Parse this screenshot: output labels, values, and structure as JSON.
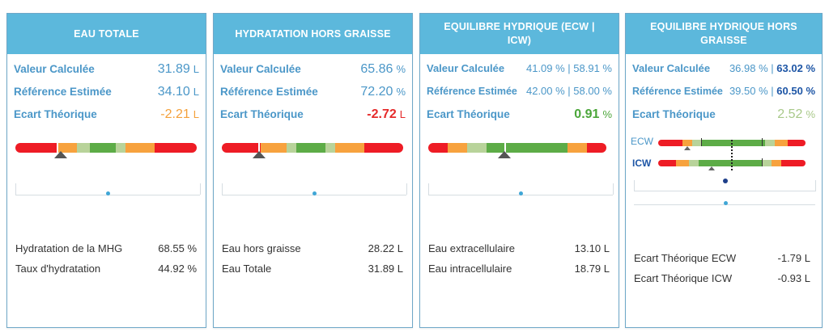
{
  "cards": [
    {
      "title": "EAU TOTALE",
      "rows": [
        {
          "label": "Valeur Calculée",
          "value": "31.89",
          "unit": "L"
        },
        {
          "label": "Référence Estimée",
          "value": "34.10",
          "unit": "L"
        },
        {
          "label": "Ecart Théorique",
          "value": "-2.21",
          "unit": "L"
        }
      ],
      "info": [
        {
          "label": "Hydratation de la MHG",
          "value": "68.55 %"
        },
        {
          "label": "Taux d'hydratation",
          "value": "44.92 %"
        }
      ]
    },
    {
      "title": "HYDRATATION HORS GRAISSE",
      "rows": [
        {
          "label": "Valeur Calculée",
          "value": "65.86",
          "unit": "%"
        },
        {
          "label": "Référence Estimée",
          "value": "72.20",
          "unit": "%"
        },
        {
          "label": "Ecart Théorique",
          "value": "-2.72",
          "unit": "L"
        }
      ],
      "info": [
        {
          "label": "Eau hors graisse",
          "value": "28.22 L"
        },
        {
          "label": "Eau Totale",
          "value": "31.89 L"
        }
      ]
    },
    {
      "title": "EQUILIBRE HYDRIQUE (ECW | ICW)",
      "rows": [
        {
          "label": "Valeur Calculée",
          "value": "41.09 % | 58.91 %"
        },
        {
          "label": "Référence Estimée",
          "value": "42.00 % | 58.00 %"
        },
        {
          "label": "Ecart Théorique",
          "value": "0.91",
          "unit": "%"
        }
      ],
      "info": [
        {
          "label": "Eau extracellulaire",
          "value": "13.10 L"
        },
        {
          "label": "Eau intracellulaire",
          "value": "18.79 L"
        }
      ]
    },
    {
      "title": "EQUILIBRE HYDRIQUE HORS GRAISSE",
      "rows": [
        {
          "label": "Valeur Calculée",
          "value_a": "36.98 %",
          "sep": "|",
          "value_b": "63.02 %"
        },
        {
          "label": "Référence Estimée",
          "value_a": "39.50 %",
          "sep": "|",
          "value_b": "60.50 %"
        },
        {
          "label": "Ecart Théorique",
          "value": "2.52",
          "unit": "%"
        }
      ],
      "gauge_labels": {
        "ecw": "ECW",
        "icw": "ICW"
      },
      "info": [
        {
          "label": "Ecart Théorique ECW",
          "value": "-1.79 L"
        },
        {
          "label": "Ecart Théorique ICW",
          "value": "-0.93 L"
        }
      ]
    }
  ],
  "gauge_colors": {
    "red": "#ee1c25",
    "orange": "#f7a23e",
    "light_green": "#b8d39a",
    "green": "#5dac47"
  },
  "value_colors": {
    "blue": "#4b97c8",
    "orange": "#f4a03a",
    "red": "#e52a2a",
    "green": "#4ba63a",
    "light_green": "#a9c98a",
    "dark_blue": "#1e56a6"
  }
}
